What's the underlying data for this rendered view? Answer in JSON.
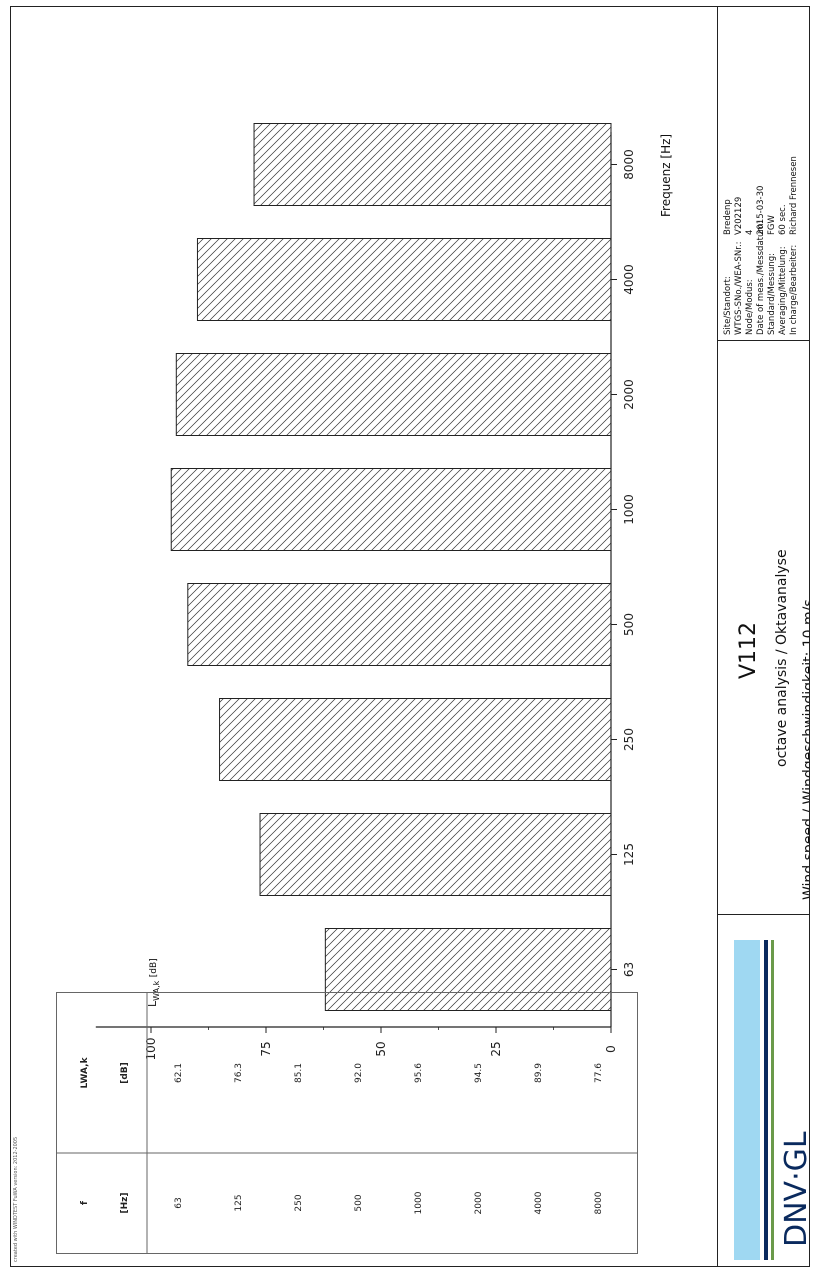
{
  "chart_data": {
    "type": "bar",
    "categories": [
      "63",
      "125",
      "250",
      "500",
      "1000",
      "2000",
      "4000",
      "8000"
    ],
    "values": [
      62.1,
      76.3,
      85.1,
      92.0,
      95.6,
      94.5,
      89.9,
      77.6
    ],
    "xlabel": "Frequenz [Hz]",
    "ylabel_main": "L",
    "ylabel_sub": "WA,k",
    "ylabel_unit": "[dB]",
    "ylim": [
      0,
      112
    ],
    "yticks": [
      "0",
      "25",
      "50",
      "75",
      "100"
    ],
    "orientation": "rotated-90-ccw",
    "fill_pattern": "diagonal-hatch"
  },
  "table": {
    "col1_header": "f",
    "col1_unit": "[Hz]",
    "col2_header_main": "L",
    "col2_header_sub": "WA,k",
    "col2_unit": "[dB]",
    "rows": [
      {
        "f": "63",
        "l": "62.1"
      },
      {
        "f": "125",
        "l": "76.3"
      },
      {
        "f": "250",
        "l": "85.1"
      },
      {
        "f": "500",
        "l": "92.0"
      },
      {
        "f": "1000",
        "l": "95.6"
      },
      {
        "f": "2000",
        "l": "94.5"
      },
      {
        "f": "4000",
        "l": "89.9"
      },
      {
        "f": "8000",
        "l": "77.6"
      }
    ]
  },
  "title_block": {
    "turbine": "V112",
    "subtitle": "octave analysis / Oktavanalyse",
    "wind_speed": "Wind speed / Windgeschwindigkeit: 10 m/s"
  },
  "info": [
    {
      "label": "Site/Standort:",
      "value": "Bredenp"
    },
    {
      "label": "WTGS-SNo./WEA-SNr.:",
      "value": "V202129"
    },
    {
      "label": "Node/Modus:",
      "value": "4"
    },
    {
      "label": "Date of meas./Messdatum:",
      "value": "2015-03-30"
    },
    {
      "label": "Standard/Messung:",
      "value": "FGW"
    },
    {
      "label": "Averaging/Mittelung:",
      "value": "60 sec."
    },
    {
      "label": "In charge/Bearbeiter:",
      "value": "Richard Frennesen"
    }
  ],
  "logo": {
    "text": "DNV·GL",
    "colors": [
      "#9fd8f2",
      "#0a2a5e",
      "#6a9a4a"
    ]
  },
  "footer_note": "created with WINDTEST FuWA version: 2012-2005"
}
